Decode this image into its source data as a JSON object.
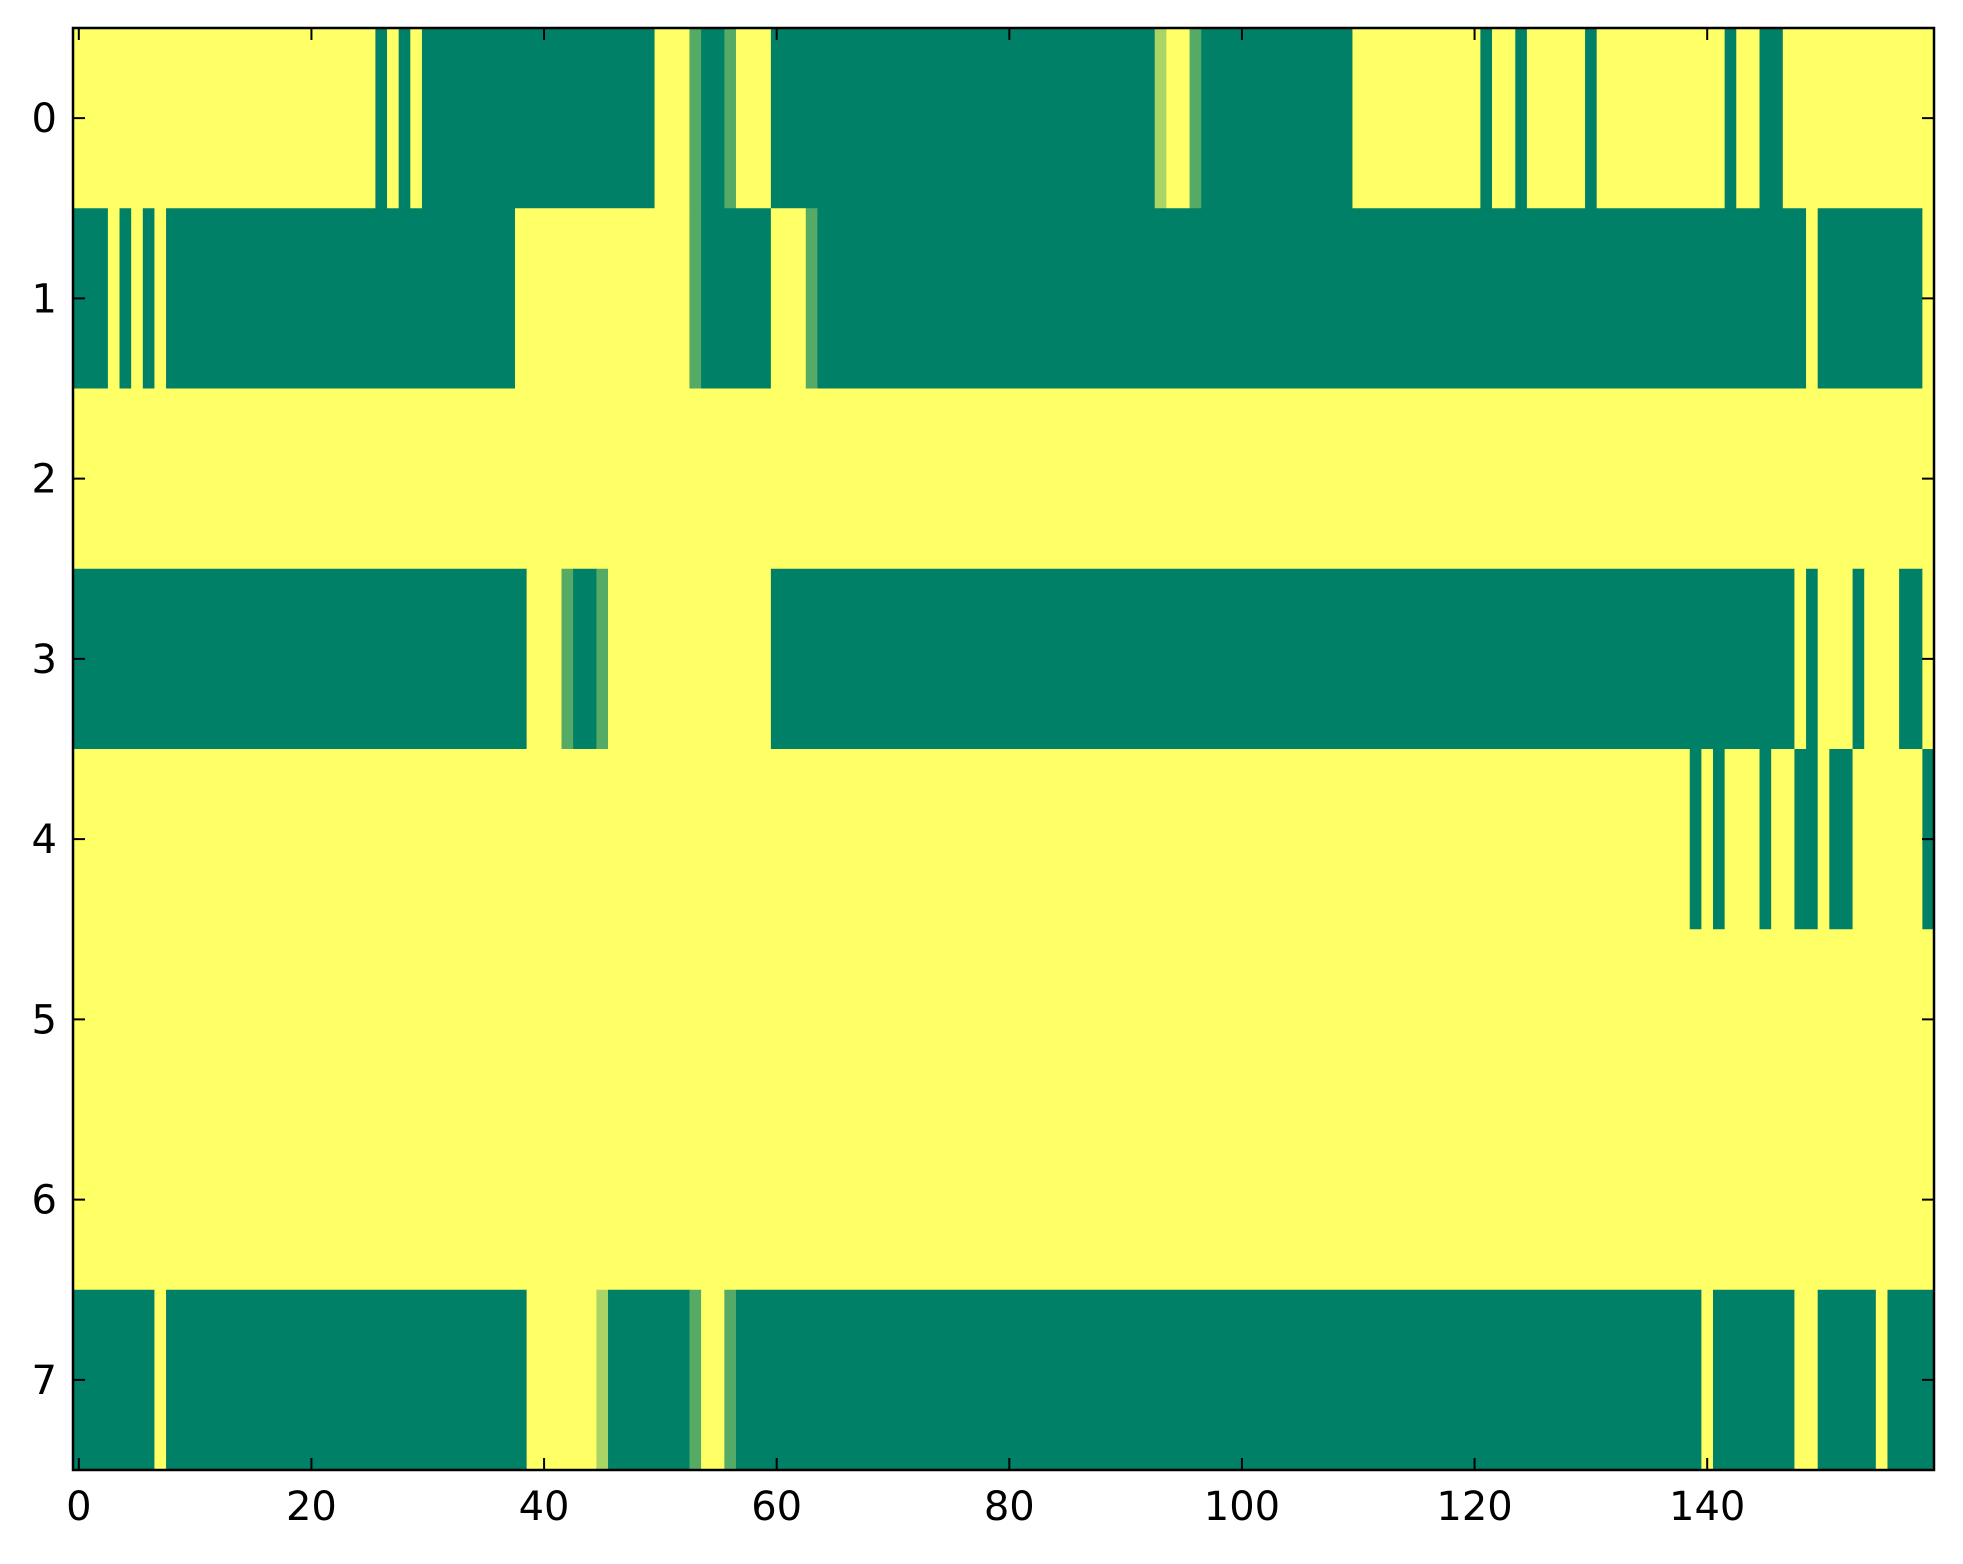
{
  "chart_data": {
    "type": "heatmap",
    "title": "",
    "xlabel": "",
    "ylabel": "",
    "xlim": [
      -0.5,
      159.5
    ],
    "ylim": [
      7.5,
      -0.5
    ],
    "x_ticks": [
      0,
      20,
      40,
      60,
      80,
      100,
      120,
      140
    ],
    "y_ticks": [
      0,
      1,
      2,
      3,
      4,
      5,
      6,
      7
    ],
    "n_cols": 160,
    "colors": {
      "0": "#ffff66",
      "1": "#008066",
      "0.67": "#55aa66",
      "0.33": "#aad466"
    },
    "grid": false,
    "legend": "none",
    "rows": [
      {
        "row": 0,
        "runs": [
          [
            0,
            25,
            0
          ],
          [
            26,
            26,
            1
          ],
          [
            27,
            27,
            0
          ],
          [
            28,
            28,
            1
          ],
          [
            29,
            29,
            0
          ],
          [
            30,
            49,
            1
          ],
          [
            50,
            52,
            0
          ],
          [
            53,
            53,
            0.67
          ],
          [
            54,
            55,
            1
          ],
          [
            56,
            56,
            0.67
          ],
          [
            57,
            59,
            0
          ],
          [
            60,
            92,
            1
          ],
          [
            93,
            93,
            0.33
          ],
          [
            94,
            95,
            0
          ],
          [
            96,
            96,
            0.67
          ],
          [
            97,
            109,
            1
          ],
          [
            110,
            120,
            0
          ],
          [
            121,
            121,
            1
          ],
          [
            122,
            123,
            0
          ],
          [
            124,
            124,
            1
          ],
          [
            125,
            129,
            0
          ],
          [
            130,
            130,
            1
          ],
          [
            131,
            141,
            0
          ],
          [
            142,
            142,
            1
          ],
          [
            143,
            144,
            0
          ],
          [
            145,
            146,
            1
          ],
          [
            147,
            159,
            0
          ]
        ]
      },
      {
        "row": 1,
        "runs": [
          [
            0,
            2,
            1
          ],
          [
            3,
            3,
            0
          ],
          [
            4,
            4,
            1
          ],
          [
            5,
            5,
            0
          ],
          [
            6,
            6,
            1
          ],
          [
            7,
            7,
            0
          ],
          [
            8,
            37,
            1
          ],
          [
            38,
            52,
            0
          ],
          [
            53,
            53,
            0.67
          ],
          [
            54,
            59,
            1
          ],
          [
            60,
            62,
            0
          ],
          [
            63,
            63,
            0.67
          ],
          [
            64,
            148,
            1
          ],
          [
            149,
            149,
            0
          ],
          [
            150,
            158,
            1
          ],
          [
            159,
            159,
            0
          ]
        ]
      },
      {
        "row": 2,
        "runs": [
          [
            0,
            159,
            0
          ]
        ]
      },
      {
        "row": 3,
        "runs": [
          [
            0,
            38,
            1
          ],
          [
            39,
            41,
            0
          ],
          [
            42,
            42,
            0.67
          ],
          [
            43,
            44,
            1
          ],
          [
            45,
            45,
            0.67
          ],
          [
            46,
            59,
            0
          ],
          [
            60,
            147,
            1
          ],
          [
            148,
            148,
            0
          ],
          [
            149,
            149,
            1
          ],
          [
            150,
            152,
            0
          ],
          [
            153,
            153,
            1
          ],
          [
            154,
            156,
            0
          ],
          [
            157,
            158,
            1
          ],
          [
            159,
            159,
            0
          ]
        ]
      },
      {
        "row": 4,
        "runs": [
          [
            0,
            138,
            0
          ],
          [
            139,
            139,
            1
          ],
          [
            140,
            140,
            0
          ],
          [
            141,
            141,
            1
          ],
          [
            142,
            144,
            0
          ],
          [
            145,
            145,
            1
          ],
          [
            146,
            147,
            0
          ],
          [
            148,
            149,
            1
          ],
          [
            150,
            150,
            0
          ],
          [
            151,
            152,
            1
          ],
          [
            153,
            158,
            0
          ],
          [
            159,
            159,
            1
          ]
        ]
      },
      {
        "row": 5,
        "runs": [
          [
            0,
            159,
            0
          ]
        ]
      },
      {
        "row": 6,
        "runs": [
          [
            0,
            159,
            0
          ]
        ]
      },
      {
        "row": 7,
        "runs": [
          [
            0,
            6,
            1
          ],
          [
            7,
            7,
            0
          ],
          [
            8,
            38,
            1
          ],
          [
            39,
            44,
            0
          ],
          [
            45,
            45,
            0.33
          ],
          [
            46,
            52,
            1
          ],
          [
            53,
            53,
            0.67
          ],
          [
            54,
            55,
            0
          ],
          [
            56,
            56,
            0.67
          ],
          [
            57,
            139,
            1
          ],
          [
            140,
            140,
            0
          ],
          [
            141,
            147,
            1
          ],
          [
            148,
            149,
            0
          ],
          [
            150,
            154,
            1
          ],
          [
            155,
            155,
            0
          ],
          [
            156,
            159,
            1
          ]
        ]
      }
    ]
  }
}
